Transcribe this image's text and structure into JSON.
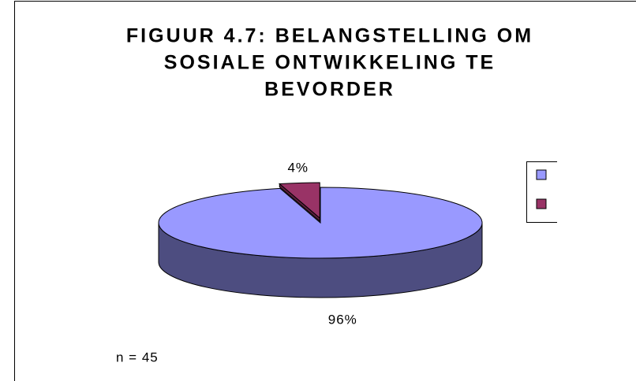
{
  "chart_data": {
    "type": "pie3d",
    "title": "FIGUUR 4.7: BELANGSTELLING OM SOSIALE ONTWIKKELING TE BEVORDER",
    "title_lines": [
      "FIGUUR 4.7: BELANGSTELLING OM",
      "SOSIALE ONTWIKKELING TE",
      "BEVORDER"
    ],
    "values": [
      96,
      4
    ],
    "value_labels": [
      "96%",
      "4%"
    ],
    "colors": [
      "#9999ff",
      "#993366"
    ],
    "side_colors": [
      "#4d4d80",
      "#5e1f3f"
    ],
    "annotation": "n = 45"
  }
}
